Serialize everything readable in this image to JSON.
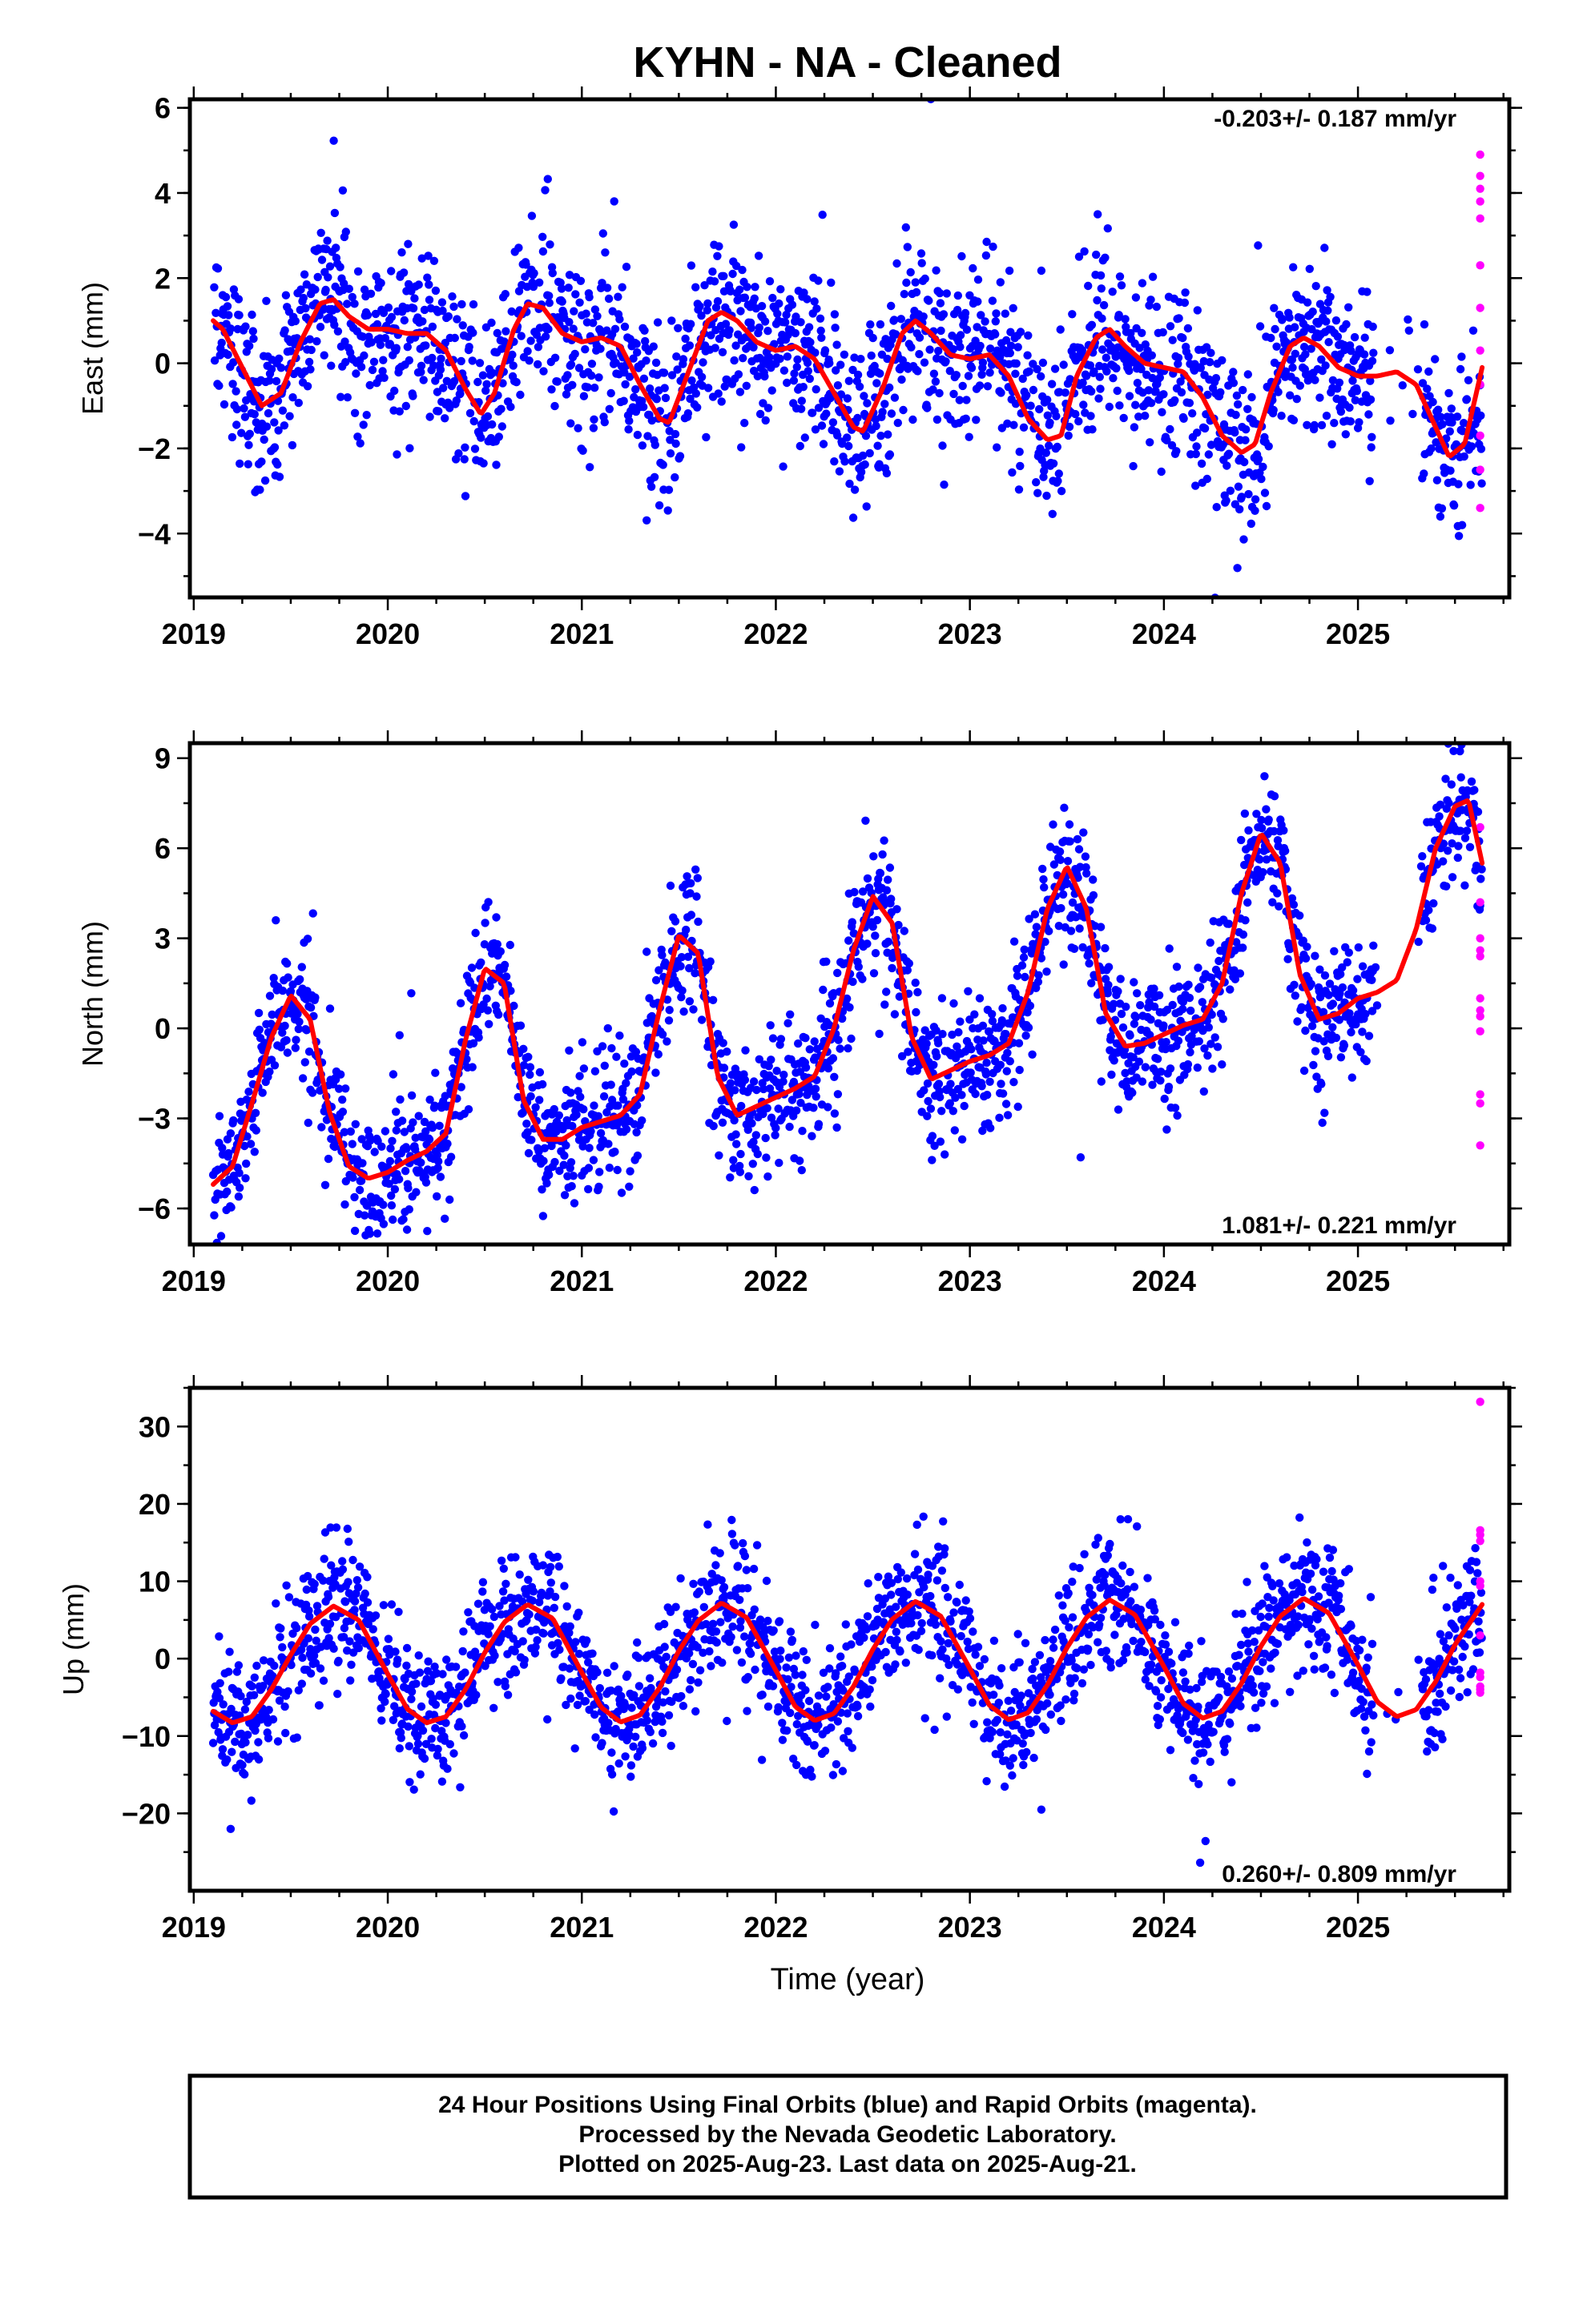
{
  "title": "KYHN  - NA - Cleaned",
  "xlabel": "Time (year)",
  "footer": {
    "line1": "24 Hour Positions Using Final Orbits (blue) and Rapid Orbits (magenta).",
    "line2": "Processed by the Nevada Geodetic Laboratory.",
    "line3": "Plotted on 2025-Aug-23. Last data on 2025-Aug-21."
  },
  "colors": {
    "final": "#0000ff",
    "rapid": "#ff00ff",
    "fit": "#ff0000"
  },
  "chart_data": [
    {
      "type": "scatter",
      "component": "east",
      "ylabel": "East (mm)",
      "rate_label": "-0.203+/- 0.187 mm/yr",
      "rate_position": "top-right",
      "xlim": [
        2018.98,
        2025.78
      ],
      "ylim": [
        -5.5,
        6.2
      ],
      "xticks": [
        2019,
        2020,
        2021,
        2022,
        2023,
        2024,
        2025
      ],
      "yticks": [
        -4,
        -2,
        0,
        2,
        4,
        6
      ],
      "grid": false,
      "rate_mm_per_yr": -0.203,
      "annual_amp": 1.0,
      "annual_phase_peak": 0.72,
      "semi_amp": 0.25,
      "offset": 0.4,
      "noise_sd": 1.0,
      "start_year": 2019.1,
      "end_year": 2025.64,
      "gaps": [
        [
          2025.08,
          2025.33
        ]
      ],
      "fit_curve": {
        "x": [
          2019.1,
          2019.15,
          2019.25,
          2019.35,
          2019.45,
          2019.55,
          2019.65,
          2019.72,
          2019.8,
          2019.9,
          2020.0,
          2020.1,
          2020.2,
          2020.3,
          2020.4,
          2020.48,
          2020.55,
          2020.65,
          2020.72,
          2020.8,
          2020.9,
          2021.0,
          2021.1,
          2021.2,
          2021.3,
          2021.4,
          2021.45,
          2021.55,
          2021.65,
          2021.72,
          2021.8,
          2021.9,
          2022.0,
          2022.1,
          2022.2,
          2022.3,
          2022.4,
          2022.45,
          2022.55,
          2022.65,
          2022.72,
          2022.8,
          2022.9,
          2023.0,
          2023.1,
          2023.2,
          2023.3,
          2023.4,
          2023.47,
          2023.55,
          2023.65,
          2023.72,
          2023.8,
          2023.9,
          2024.0,
          2024.1,
          2024.2,
          2024.3,
          2024.4,
          2024.47,
          2024.55,
          2024.65,
          2024.72,
          2024.8,
          2024.9,
          2025.0,
          2025.1,
          2025.2,
          2025.3,
          2025.4,
          2025.47,
          2025.55,
          2025.64
        ],
        "y": [
          1.0,
          0.8,
          -0.1,
          -1.0,
          -0.7,
          0.5,
          1.4,
          1.5,
          1.1,
          0.8,
          0.8,
          0.7,
          0.7,
          0.3,
          -0.6,
          -1.2,
          -0.7,
          0.8,
          1.4,
          1.3,
          0.7,
          0.5,
          0.6,
          0.4,
          -0.5,
          -1.3,
          -1.4,
          -0.2,
          1.0,
          1.2,
          1.0,
          0.5,
          0.3,
          0.4,
          0.1,
          -0.7,
          -1.5,
          -1.6,
          -0.6,
          0.7,
          1.0,
          0.7,
          0.2,
          0.1,
          0.2,
          -0.3,
          -1.3,
          -1.8,
          -1.7,
          -0.3,
          0.6,
          0.8,
          0.4,
          0.0,
          -0.1,
          -0.2,
          -0.8,
          -1.7,
          -2.1,
          -1.9,
          -0.7,
          0.4,
          0.6,
          0.4,
          -0.1,
          -0.3,
          -0.3,
          -0.2,
          -0.5,
          -1.5,
          -2.2,
          -1.9,
          -0.1
        ]
      },
      "rapid": {
        "x": [
          2025.63,
          2025.63,
          2025.63,
          2025.63,
          2025.63,
          2025.63,
          2025.63,
          2025.63,
          2025.63,
          2025.63,
          2025.63,
          2025.63
        ],
        "y": [
          4.9,
          4.4,
          4.1,
          3.8,
          3.4,
          2.3,
          1.3,
          0.3,
          -0.5,
          -1.7,
          -2.5,
          -3.4
        ]
      }
    },
    {
      "type": "scatter",
      "component": "north",
      "ylabel": "North (mm)",
      "rate_label": "1.081+/- 0.221 mm/yr",
      "rate_position": "bottom-right",
      "xlim": [
        2018.98,
        2025.78
      ],
      "ylim": [
        -7.2,
        9.5
      ],
      "xticks": [
        2019,
        2020,
        2021,
        2022,
        2023,
        2024,
        2025
      ],
      "yticks": [
        -6,
        -3,
        0,
        3,
        6,
        9
      ],
      "grid": false,
      "rate_mm_per_yr": 1.081,
      "annual_amp": 3.3,
      "annual_phase_peak": 0.5,
      "semi_amp": 0.6,
      "offset": -1.5,
      "noise_sd": 1.1,
      "start_year": 2019.1,
      "end_year": 2025.64,
      "gaps": [
        [
          2025.08,
          2025.33
        ]
      ],
      "fit_curve": {
        "x": [
          2019.1,
          2019.2,
          2019.3,
          2019.4,
          2019.5,
          2019.6,
          2019.7,
          2019.8,
          2019.9,
          2020.0,
          2020.1,
          2020.2,
          2020.3,
          2020.4,
          2020.5,
          2020.6,
          2020.7,
          2020.8,
          2020.9,
          2021.0,
          2021.1,
          2021.2,
          2021.3,
          2021.4,
          2021.5,
          2021.6,
          2021.7,
          2021.8,
          2021.9,
          2022.0,
          2022.1,
          2022.2,
          2022.3,
          2022.4,
          2022.5,
          2022.6,
          2022.7,
          2022.8,
          2022.9,
          2023.0,
          2023.1,
          2023.2,
          2023.3,
          2023.4,
          2023.5,
          2023.6,
          2023.7,
          2023.8,
          2023.9,
          2024.0,
          2024.1,
          2024.2,
          2024.3,
          2024.4,
          2024.5,
          2024.6,
          2024.7,
          2024.8,
          2024.9,
          2025.0,
          2025.1,
          2025.2,
          2025.3,
          2025.4,
          2025.5,
          2025.57,
          2025.64
        ],
        "y": [
          -5.2,
          -4.6,
          -2.5,
          -0.3,
          1.1,
          0.3,
          -2.8,
          -4.6,
          -5.0,
          -4.8,
          -4.4,
          -4.1,
          -3.5,
          -0.4,
          2.0,
          1.5,
          -2.4,
          -3.7,
          -3.7,
          -3.3,
          -3.1,
          -2.9,
          -2.2,
          0.6,
          3.1,
          2.5,
          -1.6,
          -2.9,
          -2.6,
          -2.3,
          -2.0,
          -1.6,
          0.0,
          2.6,
          4.4,
          3.5,
          -0.3,
          -1.7,
          -1.4,
          -1.1,
          -0.9,
          -0.5,
          1.2,
          4.0,
          5.4,
          4.0,
          0.5,
          -0.6,
          -0.5,
          -0.2,
          0.1,
          0.3,
          1.5,
          4.5,
          6.5,
          5.5,
          1.8,
          0.3,
          0.5,
          1.0,
          1.2,
          1.6,
          3.3,
          6.0,
          7.4,
          7.6,
          5.5
        ]
      },
      "rapid": {
        "x": [
          2025.63,
          2025.63,
          2025.63,
          2025.63,
          2025.63,
          2025.63,
          2025.63,
          2025.63,
          2025.63,
          2025.63,
          2025.63,
          2025.63
        ],
        "y": [
          6.7,
          4.2,
          3.0,
          2.6,
          2.4,
          1.0,
          0.6,
          0.4,
          -0.1,
          -2.2,
          -2.5,
          -3.9
        ]
      }
    },
    {
      "type": "scatter",
      "component": "up",
      "ylabel": "Up (mm)",
      "rate_label": "0.260+/- 0.809 mm/yr",
      "rate_position": "bottom-right",
      "xlim": [
        2018.98,
        2025.78
      ],
      "ylim": [
        -30,
        35
      ],
      "xticks": [
        2019,
        2020,
        2021,
        2022,
        2023,
        2024,
        2025
      ],
      "yticks": [
        -20,
        -10,
        0,
        10,
        20,
        30
      ],
      "grid": false,
      "rate_mm_per_yr": 0.26,
      "annual_amp": 7.6,
      "annual_phase_peak": 0.72,
      "semi_amp": 0.0,
      "offset": 0.0,
      "noise_sd": 4.2,
      "start_year": 2019.1,
      "end_year": 2025.64,
      "gaps": [
        [
          2025.08,
          2025.33
        ]
      ],
      "fit_curve": {
        "x": [
          2019.1,
          2019.2,
          2019.3,
          2019.4,
          2019.5,
          2019.6,
          2019.72,
          2019.85,
          2020.0,
          2020.1,
          2020.2,
          2020.3,
          2020.4,
          2020.5,
          2020.6,
          2020.72,
          2020.85,
          2021.0,
          2021.1,
          2021.2,
          2021.3,
          2021.4,
          2021.5,
          2021.6,
          2021.72,
          2021.85,
          2022.0,
          2022.1,
          2022.2,
          2022.3,
          2022.4,
          2022.5,
          2022.6,
          2022.72,
          2022.85,
          2023.0,
          2023.1,
          2023.2,
          2023.3,
          2023.4,
          2023.5,
          2023.6,
          2023.72,
          2023.85,
          2024.0,
          2024.1,
          2024.2,
          2024.3,
          2024.4,
          2024.5,
          2024.6,
          2024.72,
          2024.85,
          2025.0,
          2025.1,
          2025.2,
          2025.3,
          2025.4,
          2025.5,
          2025.64
        ],
        "y": [
          -6.8,
          -8.3,
          -7.5,
          -4.0,
          0.5,
          4.5,
          6.8,
          5.0,
          -2.0,
          -6.5,
          -8.3,
          -7.5,
          -4.0,
          0.8,
          4.7,
          7.0,
          5.2,
          -1.8,
          -6.3,
          -8.2,
          -7.3,
          -3.8,
          1.0,
          4.9,
          7.2,
          5.3,
          -1.5,
          -6.2,
          -8.0,
          -7.1,
          -3.6,
          1.2,
          5.1,
          7.4,
          5.5,
          -1.3,
          -6.0,
          -7.9,
          -7.0,
          -3.4,
          1.4,
          5.3,
          7.6,
          5.7,
          -1.0,
          -5.8,
          -7.7,
          -6.8,
          -3.2,
          1.6,
          5.5,
          7.8,
          5.9,
          -0.8,
          -5.6,
          -7.5,
          -6.6,
          -3.0,
          1.8,
          7.0
        ]
      },
      "rapid": {
        "x": [
          2025.63,
          2025.63,
          2025.63,
          2025.63,
          2025.63,
          2025.63,
          2025.63,
          2025.63,
          2025.63,
          2025.63,
          2025.63,
          2025.63
        ],
        "y": [
          33.2,
          16.6,
          16.0,
          15.2,
          10.0,
          9.4,
          3.0,
          -1.8,
          -2.4,
          -3.6,
          -4.0,
          -4.4
        ]
      }
    }
  ]
}
